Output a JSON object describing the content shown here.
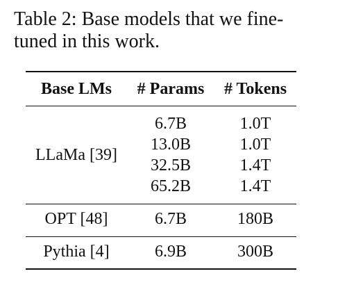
{
  "caption": [
    "Table 2: Base models that we fine-",
    "tuned in this work."
  ],
  "table": {
    "header": [
      "Base LMs",
      "# Params",
      "# Tokens"
    ],
    "groups": [
      {
        "label": "LLaMa [39]",
        "rows": [
          [
            "6.7B",
            "1.0T"
          ],
          [
            "13.0B",
            "1.0T"
          ],
          [
            "32.5B",
            "1.4T"
          ],
          [
            "65.2B",
            "1.4T"
          ]
        ]
      },
      {
        "label": "OPT [48]",
        "rows": [
          [
            "6.7B",
            "180B"
          ]
        ]
      },
      {
        "label": "Pythia [4]",
        "rows": [
          [
            "6.9B",
            "300B"
          ]
        ]
      }
    ]
  }
}
